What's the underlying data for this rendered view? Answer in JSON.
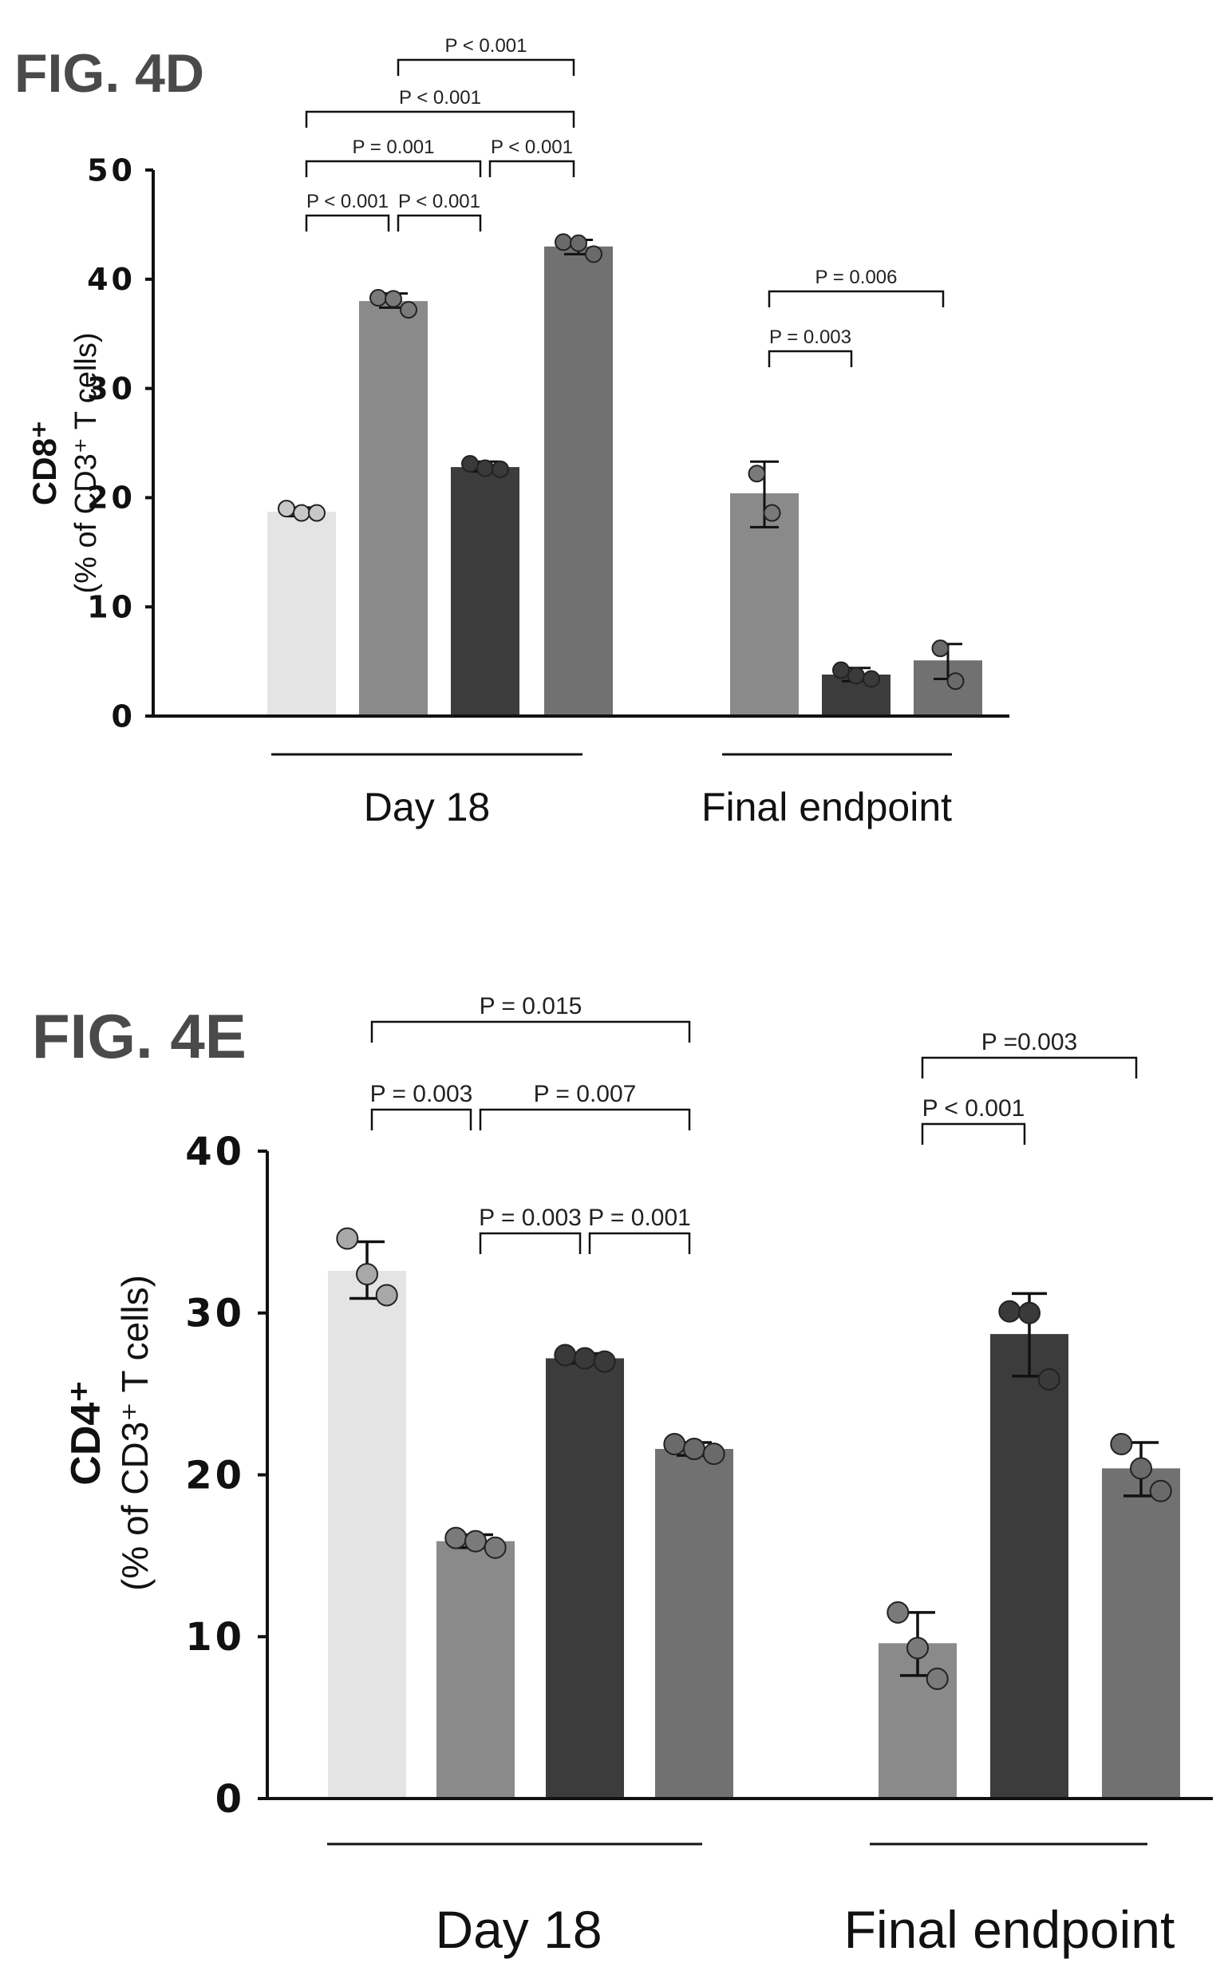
{
  "chart_data": [
    {
      "type": "bar",
      "figure_label": "FIG. 4D",
      "ylabel_main": "CD8⁺",
      "ylabel_sub": "(% of CD3⁺ T cells)",
      "ylim": [
        0,
        50
      ],
      "y_ticks": [
        "0",
        "10",
        "20",
        "30",
        "40",
        "50"
      ],
      "groups": [
        {
          "label": "Day 18",
          "bars": [
            {
              "value": 18.7,
              "err_low": 18.3,
              "err_high": 19.1,
              "points": [
                19.0,
                18.6,
                18.6
              ],
              "color": "#e4e4e4",
              "point_color": "#c8c8c8"
            },
            {
              "value": 38.0,
              "err_low": 37.4,
              "err_high": 38.7,
              "points": [
                38.3,
                38.2,
                37.2
              ],
              "color": "#8a8a8a",
              "point_color": "#7a7a7a"
            },
            {
              "value": 22.8,
              "err_low": 22.4,
              "err_high": 23.3,
              "points": [
                23.1,
                22.7,
                22.6
              ],
              "color": "#3c3c3c",
              "point_color": "#3a3a3a"
            },
            {
              "value": 43.0,
              "err_low": 42.3,
              "err_high": 43.6,
              "points": [
                43.4,
                43.3,
                42.3
              ],
              "color": "#717171",
              "point_color": "#6a6a6a"
            }
          ]
        },
        {
          "label": "Final endpoint",
          "bars": [
            {
              "value": 20.4,
              "err_low": 17.3,
              "err_high": 23.3,
              "points": [
                22.2,
                18.6
              ],
              "color": "#8a8a8a",
              "point_color": "#7a7a7a"
            },
            {
              "value": 3.8,
              "err_low": 3.2,
              "err_high": 4.4,
              "points": [
                4.2,
                3.7,
                3.4
              ],
              "color": "#3c3c3c",
              "point_color": "#3a3a3a"
            },
            {
              "value": 5.1,
              "err_low": 3.4,
              "err_high": 6.6,
              "points": [
                6.2,
                3.2
              ],
              "color": "#717171",
              "point_color": "#6a6a6a"
            }
          ]
        }
      ],
      "comparisons": [
        {
          "a": 0,
          "b": 1,
          "label": "P < 0.001",
          "level": 0
        },
        {
          "a": 1,
          "b": 2,
          "label": "P < 0.001",
          "level": 0
        },
        {
          "a": 0,
          "b": 2,
          "label": "P = 0.001",
          "level": 1
        },
        {
          "a": 2,
          "b": 3,
          "label": "P < 0.001",
          "level": 1
        },
        {
          "a": 0,
          "b": 3,
          "label": "P < 0.001",
          "level": 2
        },
        {
          "a": 1,
          "b": 3,
          "label": "P < 0.001",
          "level": 3
        },
        {
          "a": 4,
          "b": 5,
          "label": "P = 0.003",
          "level": 0
        },
        {
          "a": 4,
          "b": 6,
          "label": "P = 0.006",
          "level": 1
        }
      ]
    },
    {
      "type": "bar",
      "figure_label": "FIG. 4E",
      "ylabel_main": "CD4⁺",
      "ylabel_sub": "(% of CD3⁺ T cells)",
      "ylim": [
        0,
        40
      ],
      "y_ticks": [
        "0",
        "10",
        "20",
        "30",
        "40"
      ],
      "groups": [
        {
          "label": "Day 18",
          "bars": [
            {
              "value": 32.6,
              "err_low": 30.9,
              "err_high": 34.4,
              "points": [
                34.6,
                32.4,
                31.1
              ],
              "color": "#e4e4e4",
              "point_color": "#a8a8a8"
            },
            {
              "value": 15.9,
              "err_low": 15.5,
              "err_high": 16.3,
              "points": [
                16.1,
                15.9,
                15.5
              ],
              "color": "#8a8a8a",
              "point_color": "#7a7a7a"
            },
            {
              "value": 27.2,
              "err_low": 26.9,
              "err_high": 27.5,
              "points": [
                27.4,
                27.2,
                27.0
              ],
              "color": "#3c3c3c",
              "point_color": "#3a3a3a"
            },
            {
              "value": 21.6,
              "err_low": 21.2,
              "err_high": 22.0,
              "points": [
                21.9,
                21.6,
                21.3
              ],
              "color": "#717171",
              "point_color": "#6a6a6a"
            }
          ]
        },
        {
          "label": "Final endpoint",
          "bars": [
            {
              "value": 9.6,
              "err_low": 7.6,
              "err_high": 11.5,
              "points": [
                11.5,
                9.3,
                7.4
              ],
              "color": "#8a8a8a",
              "point_color": "#7a7a7a"
            },
            {
              "value": 28.7,
              "err_low": 26.1,
              "err_high": 31.2,
              "points": [
                30.1,
                30.0,
                25.9
              ],
              "color": "#3c3c3c",
              "point_color": "#3a3a3a"
            },
            {
              "value": 20.4,
              "err_low": 18.7,
              "err_high": 22.0,
              "points": [
                21.9,
                20.4,
                19.0
              ],
              "color": "#717171",
              "point_color": "#6a6a6a"
            }
          ]
        }
      ],
      "comparisons": [
        {
          "a": 0,
          "b": 1,
          "label": "P = 0.003",
          "level": 1
        },
        {
          "a": 1,
          "b": 3,
          "label": "P = 0.007",
          "level": 1
        },
        {
          "a": 0,
          "b": 3,
          "label": "P = 0.015",
          "level": 2
        },
        {
          "a": 1,
          "b": 2,
          "label": "P = 0.003",
          "level": 0
        },
        {
          "a": 2,
          "b": 3,
          "label": "P = 0.001",
          "level": 0
        },
        {
          "a": 4,
          "b": 5,
          "label": "P < 0.001",
          "level": 0
        },
        {
          "a": 4,
          "b": 6,
          "label": "P =0.003",
          "level": 1
        }
      ]
    }
  ]
}
